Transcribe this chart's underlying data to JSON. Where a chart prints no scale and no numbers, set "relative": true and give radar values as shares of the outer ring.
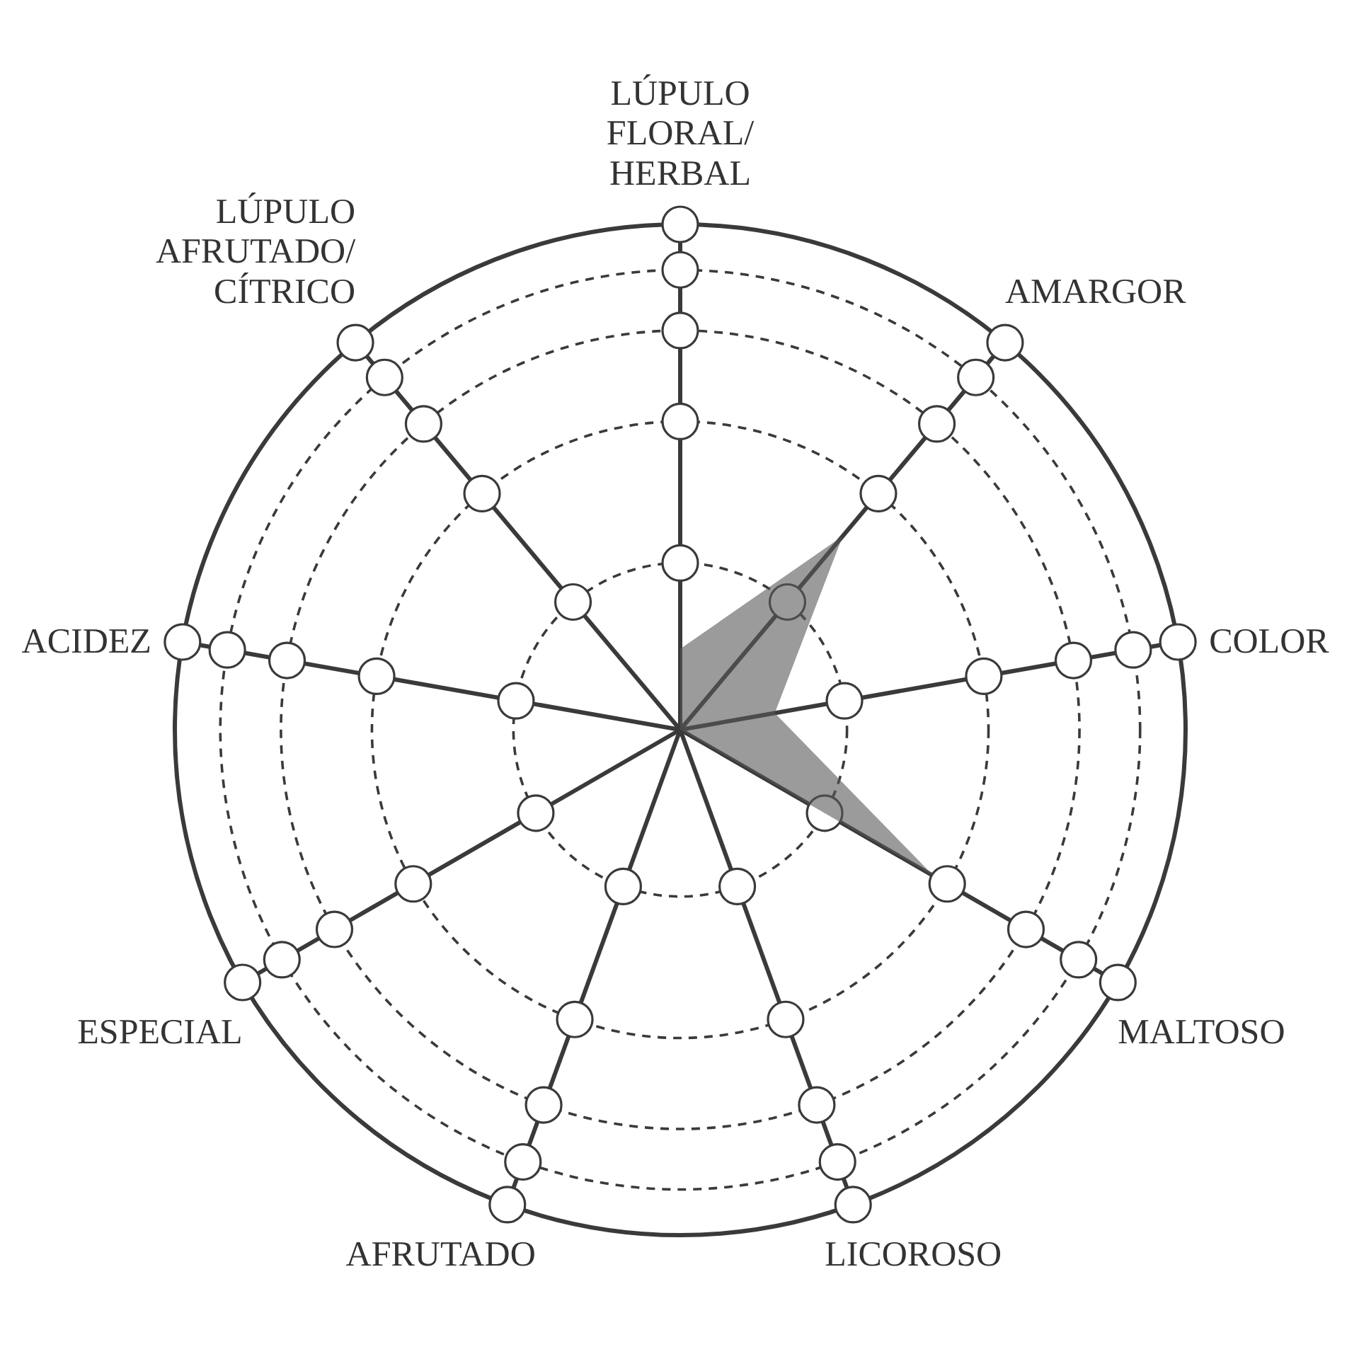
{
  "chart_data": {
    "type": "radar",
    "relative": true,
    "grid": true,
    "categories": [
      "LÚPULO\nFLORAL/\nHERBAL",
      "AMARGOR",
      "COLOR",
      "MALTOSO",
      "LICOROSO",
      "AFRUTADO",
      "ESPECIAL",
      "ACIDEZ",
      "LÚPULO\nAFRUTADO/\nCÍTRICO"
    ],
    "series": [
      {
        "color": "#9b9b9b",
        "values": [
          0.16,
          0.5,
          0.19,
          0.58,
          0,
          0.11,
          0,
          0,
          0
        ]
      }
    ]
  }
}
